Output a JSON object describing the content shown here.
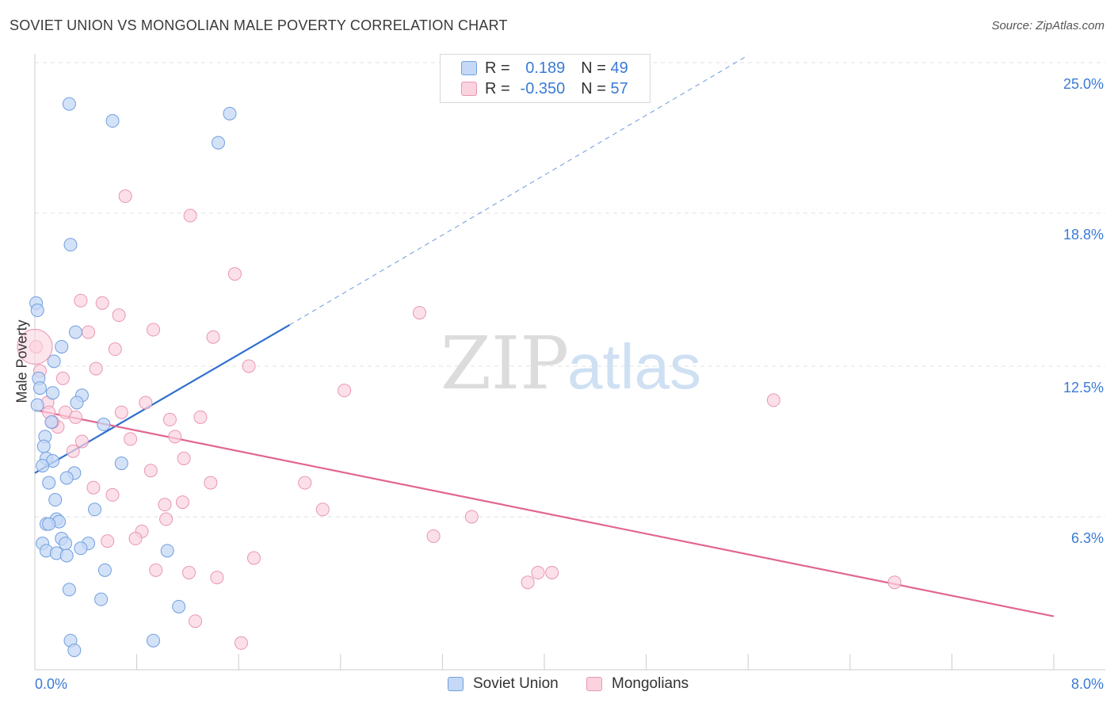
{
  "title": "SOVIET UNION VS MONGOLIAN MALE POVERTY CORRELATION CHART",
  "source": "Source: ZipAtlas.com",
  "watermark": {
    "part1": "ZIP",
    "part2": "atlas"
  },
  "legend_top": {
    "rows": [
      {
        "r_label": "R = ",
        "r_value": "0.189",
        "n_label": "N = ",
        "n_value": "49"
      },
      {
        "r_label": "R = ",
        "r_value": "-0.350",
        "n_label": "N = ",
        "n_value": "57"
      }
    ]
  },
  "colors": {
    "blue_fill": "#c5d8f5",
    "blue_stroke": "#6f9fe0",
    "blue_line": "#2f6fcf",
    "pink_fill": "#fbd3df",
    "pink_stroke": "#e996b2",
    "pink_line": "#e2668f",
    "tick_text": "#3a7bd5",
    "grid": "#e2e2e2"
  },
  "chart_data": {
    "type": "scatter",
    "title": "SOVIET UNION VS MONGOLIAN MALE POVERTY CORRELATION CHART",
    "xlabel": "",
    "ylabel": "Male Poverty",
    "xlim": [
      0,
      8.0
    ],
    "ylim": [
      0,
      25.0
    ],
    "x_tick_labels": [
      "0.0%",
      "8.0%"
    ],
    "y_ticks": [
      6.3,
      12.5,
      18.8,
      25.0
    ],
    "y_tick_labels": [
      "6.3%",
      "12.5%",
      "18.8%",
      "25.0%"
    ],
    "grid": true,
    "legend_position": "bottom",
    "series": [
      {
        "name": "Soviet Union",
        "r": 0.189,
        "n": 49,
        "trend": {
          "x": [
            0.0,
            2.0
          ],
          "y": [
            8.1,
            14.2
          ],
          "extended_x": [
            2.0,
            5.6
          ],
          "extended_y": [
            14.2,
            25.3
          ]
        },
        "points": [
          [
            0.27,
            23.3
          ],
          [
            0.61,
            22.6
          ],
          [
            1.53,
            22.9
          ],
          [
            1.44,
            21.7
          ],
          [
            0.28,
            17.5
          ],
          [
            0.01,
            15.1
          ],
          [
            0.02,
            14.8
          ],
          [
            0.32,
            13.9
          ],
          [
            0.21,
            13.3
          ],
          [
            0.15,
            12.7
          ],
          [
            0.03,
            12.0
          ],
          [
            0.04,
            11.6
          ],
          [
            0.14,
            11.4
          ],
          [
            0.37,
            11.3
          ],
          [
            0.33,
            11.0
          ],
          [
            0.02,
            10.9
          ],
          [
            0.13,
            10.2
          ],
          [
            0.54,
            10.1
          ],
          [
            0.08,
            9.6
          ],
          [
            0.07,
            9.2
          ],
          [
            0.09,
            8.7
          ],
          [
            0.14,
            8.6
          ],
          [
            0.68,
            8.5
          ],
          [
            0.06,
            8.4
          ],
          [
            0.31,
            8.1
          ],
          [
            0.25,
            7.9
          ],
          [
            0.11,
            7.7
          ],
          [
            0.16,
            7.0
          ],
          [
            0.17,
            6.2
          ],
          [
            0.19,
            6.1
          ],
          [
            0.09,
            6.0
          ],
          [
            0.11,
            6.0
          ],
          [
            0.21,
            5.4
          ],
          [
            0.24,
            5.2
          ],
          [
            0.06,
            5.2
          ],
          [
            0.42,
            5.2
          ],
          [
            0.36,
            5.0
          ],
          [
            0.09,
            4.9
          ],
          [
            1.04,
            4.9
          ],
          [
            0.17,
            4.8
          ],
          [
            0.25,
            4.7
          ],
          [
            0.55,
            4.1
          ],
          [
            0.27,
            3.3
          ],
          [
            0.52,
            2.9
          ],
          [
            1.13,
            2.6
          ],
          [
            0.28,
            1.2
          ],
          [
            0.93,
            1.2
          ],
          [
            0.31,
            0.8
          ],
          [
            0.47,
            6.6
          ]
        ]
      },
      {
        "name": "Mongolians",
        "r": -0.35,
        "n": 57,
        "trend": {
          "x": [
            0.0,
            8.0
          ],
          "y": [
            10.7,
            2.2
          ]
        },
        "points": [
          [
            0.71,
            19.5
          ],
          [
            1.22,
            18.7
          ],
          [
            1.57,
            16.3
          ],
          [
            0.36,
            15.2
          ],
          [
            0.53,
            15.1
          ],
          [
            3.02,
            14.7
          ],
          [
            0.66,
            14.6
          ],
          [
            0.93,
            14.0
          ],
          [
            0.42,
            13.9
          ],
          [
            1.4,
            13.7
          ],
          [
            0.01,
            13.3
          ],
          [
            0.63,
            13.2
          ],
          [
            1.68,
            12.5
          ],
          [
            0.48,
            12.4
          ],
          [
            0.04,
            12.3
          ],
          [
            0.22,
            12.0
          ],
          [
            2.43,
            11.5
          ],
          [
            5.8,
            11.1
          ],
          [
            0.1,
            11.0
          ],
          [
            0.87,
            11.0
          ],
          [
            0.11,
            10.6
          ],
          [
            0.68,
            10.6
          ],
          [
            0.24,
            10.6
          ],
          [
            1.3,
            10.4
          ],
          [
            1.06,
            10.3
          ],
          [
            0.32,
            10.4
          ],
          [
            0.18,
            10.0
          ],
          [
            0.14,
            10.2
          ],
          [
            1.1,
            9.6
          ],
          [
            0.75,
            9.5
          ],
          [
            0.37,
            9.4
          ],
          [
            0.3,
            9.0
          ],
          [
            1.17,
            8.7
          ],
          [
            0.91,
            8.2
          ],
          [
            2.12,
            7.7
          ],
          [
            1.38,
            7.7
          ],
          [
            0.46,
            7.5
          ],
          [
            0.61,
            7.2
          ],
          [
            1.16,
            6.9
          ],
          [
            1.02,
            6.8
          ],
          [
            2.26,
            6.6
          ],
          [
            3.43,
            6.3
          ],
          [
            1.03,
            6.2
          ],
          [
            0.84,
            5.7
          ],
          [
            3.13,
            5.5
          ],
          [
            0.79,
            5.4
          ],
          [
            0.57,
            5.3
          ],
          [
            1.72,
            4.6
          ],
          [
            0.95,
            4.1
          ],
          [
            1.21,
            4.0
          ],
          [
            3.95,
            4.0
          ],
          [
            4.06,
            4.0
          ],
          [
            3.87,
            3.6
          ],
          [
            6.75,
            3.6
          ],
          [
            1.43,
            3.8
          ],
          [
            1.26,
            2.0
          ],
          [
            1.62,
            1.1
          ]
        ]
      }
    ]
  }
}
